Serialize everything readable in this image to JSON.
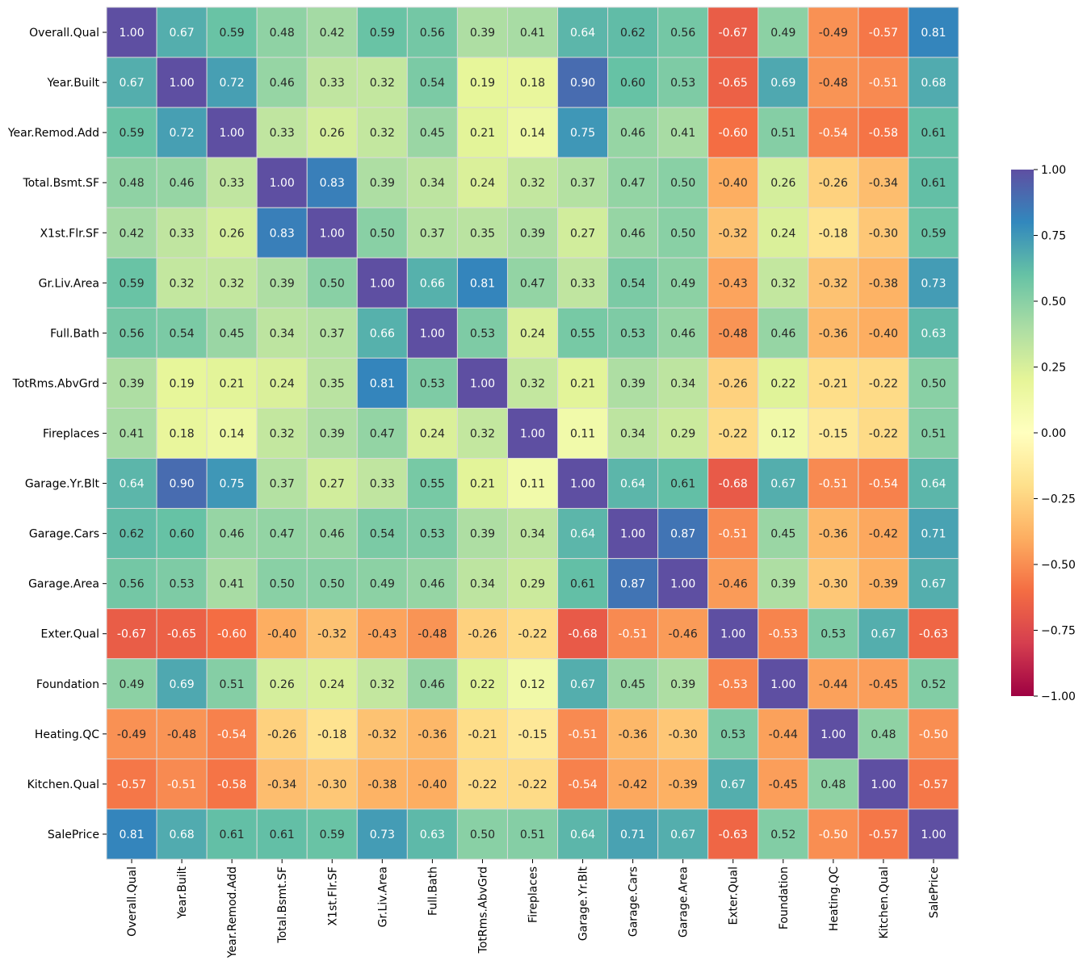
{
  "chart_data": {
    "type": "heatmap",
    "title": "",
    "xlabel": "",
    "ylabel": "",
    "colormap": "Spectral",
    "vmin": -1,
    "vmax": 1,
    "labels": [
      "Overall.Qual",
      "Year.Built",
      "Year.Remod.Add",
      "Total.Bsmt.SF",
      "X1st.Flr.SF",
      "Gr.Liv.Area",
      "Full.Bath",
      "TotRms.AbvGrd",
      "Fireplaces",
      "Garage.Yr.Blt",
      "Garage.Cars",
      "Garage.Area",
      "Exter.Qual",
      "Foundation",
      "Heating.QC",
      "Kitchen.Qual",
      "SalePrice"
    ],
    "values": [
      [
        1.0,
        0.67,
        0.59,
        0.48,
        0.42,
        0.59,
        0.56,
        0.39,
        0.41,
        0.64,
        0.62,
        0.56,
        -0.67,
        0.49,
        -0.49,
        -0.57,
        0.81
      ],
      [
        0.67,
        1.0,
        0.72,
        0.46,
        0.33,
        0.32,
        0.54,
        0.19,
        0.18,
        0.9,
        0.6,
        0.53,
        -0.65,
        0.69,
        -0.48,
        -0.51,
        0.68
      ],
      [
        0.59,
        0.72,
        1.0,
        0.33,
        0.26,
        0.32,
        0.45,
        0.21,
        0.14,
        0.75,
        0.46,
        0.41,
        -0.6,
        0.51,
        -0.54,
        -0.58,
        0.61
      ],
      [
        0.48,
        0.46,
        0.33,
        1.0,
        0.83,
        0.39,
        0.34,
        0.24,
        0.32,
        0.37,
        0.47,
        0.5,
        -0.4,
        0.26,
        -0.26,
        -0.34,
        0.61
      ],
      [
        0.42,
        0.33,
        0.26,
        0.83,
        1.0,
        0.5,
        0.37,
        0.35,
        0.39,
        0.27,
        0.46,
        0.5,
        -0.32,
        0.24,
        -0.18,
        -0.3,
        0.59
      ],
      [
        0.59,
        0.32,
        0.32,
        0.39,
        0.5,
        1.0,
        0.66,
        0.81,
        0.47,
        0.33,
        0.54,
        0.49,
        -0.43,
        0.32,
        -0.32,
        -0.38,
        0.73
      ],
      [
        0.56,
        0.54,
        0.45,
        0.34,
        0.37,
        0.66,
        1.0,
        0.53,
        0.24,
        0.55,
        0.53,
        0.46,
        -0.48,
        0.46,
        -0.36,
        -0.4,
        0.63
      ],
      [
        0.39,
        0.19,
        0.21,
        0.24,
        0.35,
        0.81,
        0.53,
        1.0,
        0.32,
        0.21,
        0.39,
        0.34,
        -0.26,
        0.22,
        -0.21,
        -0.22,
        0.5
      ],
      [
        0.41,
        0.18,
        0.14,
        0.32,
        0.39,
        0.47,
        0.24,
        0.32,
        1.0,
        0.11,
        0.34,
        0.29,
        -0.22,
        0.12,
        -0.15,
        -0.22,
        0.51
      ],
      [
        0.64,
        0.9,
        0.75,
        0.37,
        0.27,
        0.33,
        0.55,
        0.21,
        0.11,
        1.0,
        0.64,
        0.61,
        -0.68,
        0.67,
        -0.51,
        -0.54,
        0.64
      ],
      [
        0.62,
        0.6,
        0.46,
        0.47,
        0.46,
        0.54,
        0.53,
        0.39,
        0.34,
        0.64,
        1.0,
        0.87,
        -0.51,
        0.45,
        -0.36,
        -0.42,
        0.71
      ],
      [
        0.56,
        0.53,
        0.41,
        0.5,
        0.5,
        0.49,
        0.46,
        0.34,
        0.29,
        0.61,
        0.87,
        1.0,
        -0.46,
        0.39,
        -0.3,
        -0.39,
        0.67
      ],
      [
        -0.67,
        -0.65,
        -0.6,
        -0.4,
        -0.32,
        -0.43,
        -0.48,
        -0.26,
        -0.22,
        -0.68,
        -0.51,
        -0.46,
        1.0,
        -0.53,
        0.53,
        0.67,
        -0.63
      ],
      [
        0.49,
        0.69,
        0.51,
        0.26,
        0.24,
        0.32,
        0.46,
        0.22,
        0.12,
        0.67,
        0.45,
        0.39,
        -0.53,
        1.0,
        -0.44,
        -0.45,
        0.52
      ],
      [
        -0.49,
        -0.48,
        -0.54,
        -0.26,
        -0.18,
        -0.32,
        -0.36,
        -0.21,
        -0.15,
        -0.51,
        -0.36,
        -0.3,
        0.53,
        -0.44,
        1.0,
        0.48,
        -0.5
      ],
      [
        -0.57,
        -0.51,
        -0.58,
        -0.34,
        -0.3,
        -0.38,
        -0.4,
        -0.22,
        -0.22,
        -0.54,
        -0.42,
        -0.39,
        0.67,
        -0.45,
        0.48,
        1.0,
        -0.57
      ],
      [
        0.81,
        0.68,
        0.61,
        0.61,
        0.59,
        0.73,
        0.63,
        0.5,
        0.51,
        0.64,
        0.71,
        0.67,
        -0.63,
        0.52,
        -0.5,
        -0.57,
        1.0
      ]
    ],
    "colorbar_ticks": [
      "1.00",
      "0.75",
      "0.50",
      "0.25",
      "0.00",
      "−0.25",
      "−0.50",
      "−0.75",
      "−1.00"
    ],
    "colorbar_tick_values": [
      1,
      0.75,
      0.5,
      0.25,
      0,
      -0.25,
      -0.5,
      -0.75,
      -1
    ]
  }
}
